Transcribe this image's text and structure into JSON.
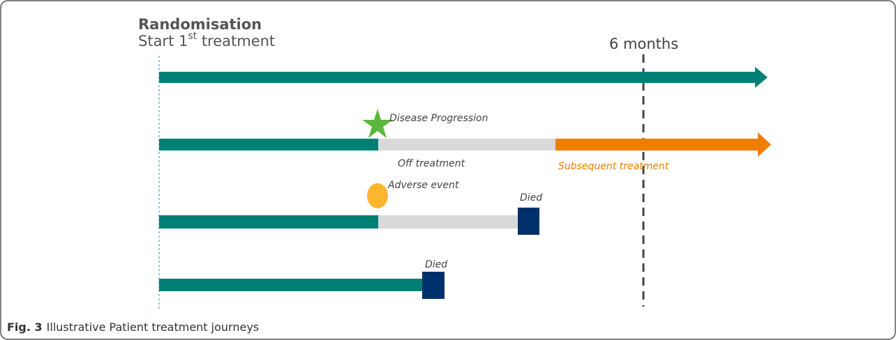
{
  "header": {
    "title": "Randomisation",
    "subtitle": {
      "prefix": "Start 1",
      "superscript": "st",
      "suffix": " treatment"
    }
  },
  "milestone": "6 months",
  "journeys": [
    {
      "events": []
    },
    {
      "events": [
        "Disease Progression",
        "Off treatment",
        "Subsequent treatment"
      ]
    },
    {
      "events": [
        "Adverse event",
        "Died"
      ]
    },
    {
      "events": [
        "Died"
      ]
    }
  ],
  "caption": {
    "label": "Fig. 3",
    "text": "Illustrative Patient treatment journeys"
  }
}
